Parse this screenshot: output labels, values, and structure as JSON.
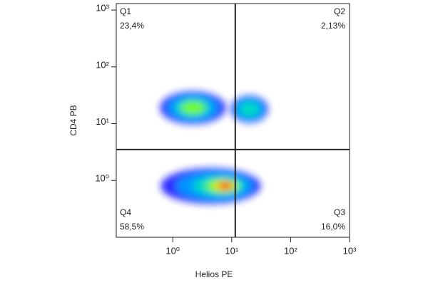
{
  "chart_data": {
    "type": "density",
    "xlabel": "Helios PE",
    "ylabel": "CD4 PB",
    "xscale": "log",
    "yscale": "log",
    "xlim": [
      0.11,
      1000
    ],
    "ylim": [
      0.1,
      1300
    ],
    "xticks": [
      {
        "value": 1,
        "label": "10⁰"
      },
      {
        "value": 10,
        "label": "10¹"
      },
      {
        "value": 100,
        "label": "10²"
      },
      {
        "value": 1000,
        "label": "10³"
      }
    ],
    "yticks": [
      {
        "value": 1,
        "label": "10⁰"
      },
      {
        "value": 10,
        "label": "10¹"
      },
      {
        "value": 100,
        "label": "10²"
      },
      {
        "value": 1000,
        "label": "10³"
      }
    ],
    "gate_x": 11.5,
    "gate_y": 3.5,
    "clusters": {
      "x": [
        2.2,
        20,
        4.4
      ],
      "y": [
        19,
        18,
        0.8
      ]
    },
    "quadrants": {
      "names": [
        "Q1",
        "Q2",
        "Q3",
        "Q4"
      ],
      "values": [
        23.4,
        2.13,
        16.0,
        58.5
      ],
      "value_labels": [
        "23,4%",
        "2,13%",
        "16,0%",
        "58,5%"
      ]
    }
  }
}
